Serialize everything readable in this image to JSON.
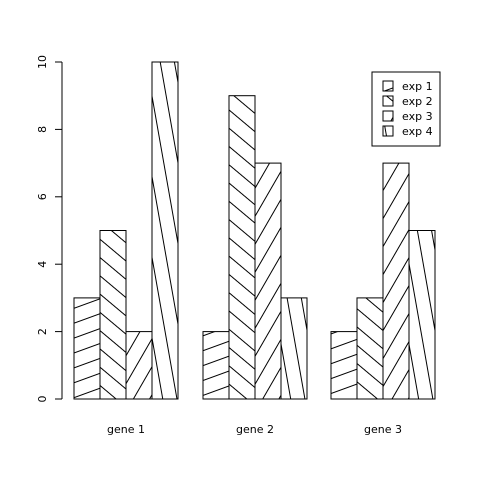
{
  "chart_data": {
    "type": "bar",
    "title": "",
    "xlabel": "",
    "ylabel": "",
    "categories": [
      "gene 1",
      "gene 2",
      "gene 3"
    ],
    "series": [
      {
        "name": "exp 1",
        "values": [
          3,
          2,
          2
        ],
        "hatch_angle": 20
      },
      {
        "name": "exp 2",
        "values": [
          5,
          9,
          3
        ],
        "hatch_angle": -40
      },
      {
        "name": "exp 3",
        "values": [
          2,
          7,
          7
        ],
        "hatch_angle": 60
      },
      {
        "name": "exp 4",
        "values": [
          10,
          3,
          5
        ],
        "hatch_angle": -80
      }
    ],
    "ylim": [
      0,
      10
    ],
    "yticks": [
      "0",
      "2",
      "4",
      "6",
      "8",
      "10"
    ],
    "grid": false,
    "legend_position": "top-right",
    "bar_fill": "#ffffff",
    "bar_stroke": "#000000",
    "hatch_color": "#000000"
  }
}
